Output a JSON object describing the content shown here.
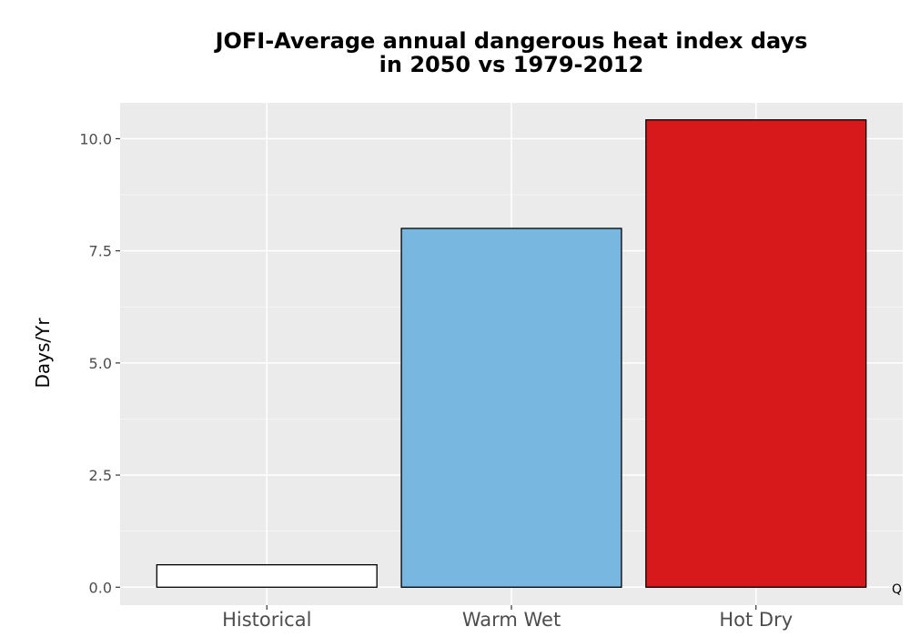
{
  "chart_data": {
    "type": "bar",
    "title": [
      "JOFI-Average annual dangerous heat index days",
      "in 2050 vs 1979-2012"
    ],
    "xlabel": "",
    "ylabel": "Days/Yr",
    "categories": [
      "Historical",
      "Warm Wet",
      "Hot Dry"
    ],
    "values": [
      0.5,
      8.0,
      10.42
    ],
    "colors": [
      "#ffffff",
      "#77b7e0",
      "#d7191c"
    ],
    "ylim": [
      -0.4,
      10.8
    ],
    "yticks": [
      0.0,
      2.5,
      5.0,
      7.5,
      10.0
    ],
    "ytick_labels": [
      "0.0",
      "2.5",
      "5.0",
      "7.5",
      "10.0"
    ],
    "grid": true,
    "panel_background": "#ebebeb",
    "annotation": "Q"
  }
}
